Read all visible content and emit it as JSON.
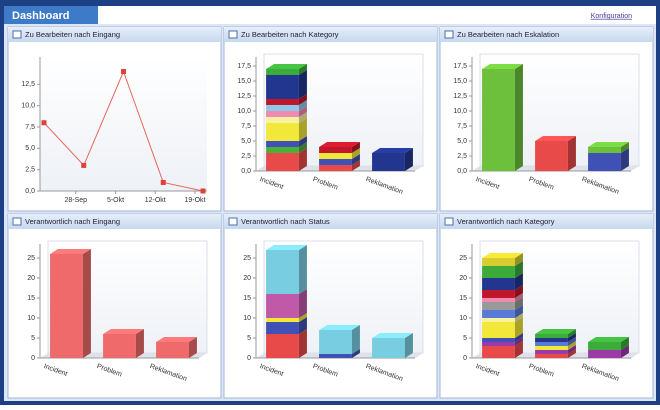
{
  "header": {
    "title": "Dashboard",
    "link": "Konfiguration"
  },
  "chart_data": [
    {
      "type": "line",
      "title": "Zu Bearbeiten nach Eingang",
      "categories": [
        null,
        "28-Sep",
        "5-Okt",
        "12-Okt",
        "19-Okt"
      ],
      "values": [
        8,
        3,
        14,
        1,
        0
      ],
      "color": "#e8665e",
      "ylim": [
        0,
        15
      ],
      "yticks": [
        {
          "value": 0,
          "label": "0,0"
        },
        {
          "value": 2.5,
          "label": "2,5"
        },
        {
          "value": 5,
          "label": "5,0"
        },
        {
          "value": 7.5,
          "label": "7,5"
        },
        {
          "value": 10,
          "label": "10,0"
        },
        {
          "value": 12.5,
          "label": "12,5"
        }
      ]
    },
    {
      "type": "bar",
      "stacked": true,
      "title": "Zu Bearbeiten nach Kategory",
      "categories": [
        "Incident",
        "Problem",
        "Reklamation"
      ],
      "ylim": [
        0,
        18
      ],
      "yticks": [
        {
          "value": 0,
          "label": "0,0"
        },
        {
          "value": 2.5,
          "label": "2,5"
        },
        {
          "value": 5,
          "label": "5,0"
        },
        {
          "value": 7.5,
          "label": "7,5"
        },
        {
          "value": 10,
          "label": "10,0"
        },
        {
          "value": 12.5,
          "label": "12,5"
        },
        {
          "value": 15,
          "label": "15,0"
        },
        {
          "value": 17.5,
          "label": "17,5"
        }
      ],
      "series": [
        {
          "color": "#e84a4a",
          "values": [
            3,
            1,
            0
          ]
        },
        {
          "color": "#4caf3a",
          "values": [
            1,
            0,
            0
          ]
        },
        {
          "color": "#3f51b5",
          "values": [
            1,
            1,
            0
          ]
        },
        {
          "color": "#f2e83a",
          "values": [
            3,
            1,
            0
          ]
        },
        {
          "color": "#f7f2a0",
          "values": [
            1,
            0,
            0
          ]
        },
        {
          "color": "#f08ab0",
          "values": [
            1,
            0,
            0
          ]
        },
        {
          "color": "#8fc8e8",
          "values": [
            1,
            0,
            0
          ]
        },
        {
          "color": "#c0182a",
          "values": [
            1,
            1,
            0
          ]
        },
        {
          "color": "#23368f",
          "values": [
            4,
            0,
            3
          ]
        },
        {
          "color": "#3cab3a",
          "values": [
            1,
            0,
            0
          ]
        }
      ]
    },
    {
      "type": "bar",
      "stacked": true,
      "title": "Zu Bearbeiten nach Eskalation",
      "categories": [
        "Incident",
        "Problem",
        "Reklamation"
      ],
      "ylim": [
        0,
        18
      ],
      "yticks": [
        {
          "value": 0,
          "label": "0,0"
        },
        {
          "value": 2.5,
          "label": "2,5"
        },
        {
          "value": 5,
          "label": "5,0"
        },
        {
          "value": 7.5,
          "label": "7,5"
        },
        {
          "value": 10,
          "label": "10,0"
        },
        {
          "value": 12.5,
          "label": "12,5"
        },
        {
          "value": 15,
          "label": "15,0"
        },
        {
          "value": 17.5,
          "label": "17,5"
        }
      ],
      "series": [
        {
          "color": "#e84a4a",
          "values": [
            0,
            5,
            0
          ]
        },
        {
          "color": "#3f51b5",
          "values": [
            0,
            0,
            3
          ]
        },
        {
          "color": "#6cc03c",
          "values": [
            17,
            0,
            1
          ]
        }
      ]
    },
    {
      "type": "bar",
      "title": "Verantwortlich nach Eingang",
      "categories": [
        "Incident",
        "Problem",
        "Reklamation"
      ],
      "values": [
        26,
        6,
        4
      ],
      "color": "#ef6a6a",
      "ylim": [
        0,
        27
      ],
      "yticks": [
        0,
        5,
        10,
        15,
        20,
        25
      ]
    },
    {
      "type": "bar",
      "stacked": true,
      "title": "Verantwortlich nach Status",
      "categories": [
        "Incident",
        "Problem",
        "Reklamation"
      ],
      "ylim": [
        0,
        27
      ],
      "yticks": [
        0,
        5,
        10,
        15,
        20,
        25
      ],
      "series": [
        {
          "color": "#e84a4a",
          "values": [
            6,
            0,
            0
          ]
        },
        {
          "color": "#3f51b5",
          "values": [
            3,
            1,
            0
          ]
        },
        {
          "color": "#f2e83a",
          "values": [
            1,
            0,
            0
          ]
        },
        {
          "color": "#c05aa8",
          "values": [
            6,
            0,
            0
          ]
        },
        {
          "color": "#78cde0",
          "values": [
            11,
            6,
            5
          ]
        }
      ]
    },
    {
      "type": "bar",
      "stacked": true,
      "title": "Verantwortlich nach Kategory",
      "categories": [
        "Incident",
        "Problem",
        "Reklamation"
      ],
      "ylim": [
        0,
        27
      ],
      "yticks": [
        0,
        5,
        10,
        15,
        20,
        25
      ],
      "series": [
        {
          "color": "#e84a4a",
          "values": [
            3,
            1,
            0
          ]
        },
        {
          "color": "#9b3aa8",
          "values": [
            1,
            1,
            2
          ]
        },
        {
          "color": "#3f51b5",
          "values": [
            1,
            0,
            0
          ]
        },
        {
          "color": "#f2e83a",
          "values": [
            4,
            1,
            0
          ]
        },
        {
          "color": "#f7f2a0",
          "values": [
            1,
            0,
            0
          ]
        },
        {
          "color": "#5a7ad8",
          "values": [
            2,
            1,
            0
          ]
        },
        {
          "color": "#999999",
          "values": [
            2,
            0,
            0
          ]
        },
        {
          "color": "#f08ab0",
          "values": [
            1,
            0,
            0
          ]
        },
        {
          "color": "#c0182a",
          "values": [
            2,
            0,
            0
          ]
        },
        {
          "color": "#23368f",
          "values": [
            3,
            1,
            0
          ]
        },
        {
          "color": "#3cab3a",
          "values": [
            3,
            1,
            2
          ]
        },
        {
          "color": "#d8cc30",
          "values": [
            2,
            0,
            0
          ]
        }
      ]
    }
  ]
}
